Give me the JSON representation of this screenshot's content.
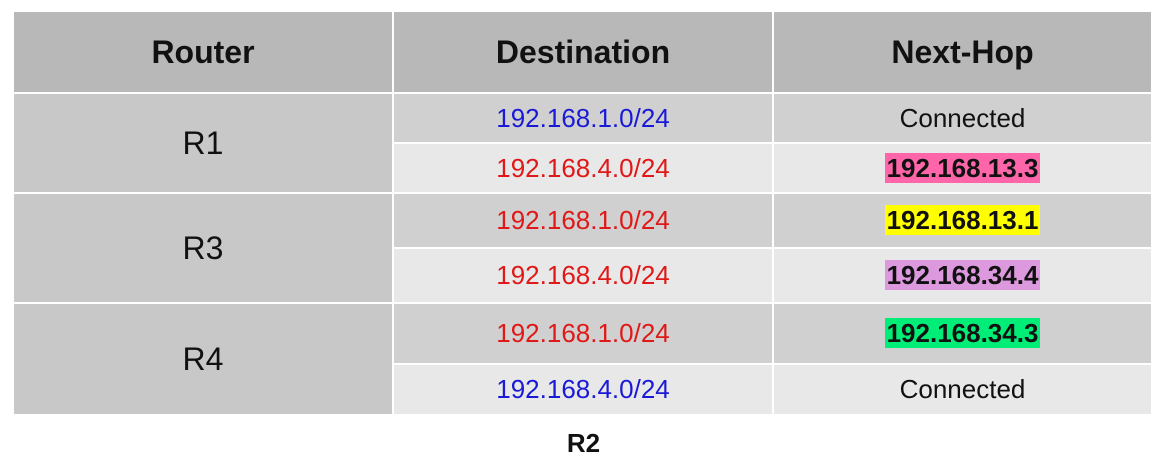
{
  "table": {
    "headers": {
      "router": "Router",
      "destination": "Destination",
      "next_hop": "Next-Hop"
    },
    "groups": [
      {
        "router": "R1",
        "routes": [
          {
            "destination": "192.168.1.0/24",
            "destination_color": "#1a1ad6",
            "next_hop": "Connected",
            "highlight": null
          },
          {
            "destination": "192.168.4.0/24",
            "destination_color": "#e01818",
            "next_hop": "192.168.13.3",
            "highlight": "#ff66aa"
          }
        ]
      },
      {
        "router": "R3",
        "routes": [
          {
            "destination": "192.168.1.0/24",
            "destination_color": "#e01818",
            "next_hop": "192.168.13.1",
            "highlight": "#ffff00"
          },
          {
            "destination": "192.168.4.0/24",
            "destination_color": "#e01818",
            "next_hop": "192.168.34.4",
            "highlight": "#dd99dd"
          }
        ]
      },
      {
        "router": "R4",
        "routes": [
          {
            "destination": "192.168.1.0/24",
            "destination_color": "#e01818",
            "next_hop": "192.168.34.3",
            "highlight": "#00ee77"
          },
          {
            "destination": "192.168.4.0/24",
            "destination_color": "#1a1ad6",
            "next_hop": "Connected",
            "highlight": null
          }
        ]
      }
    ]
  },
  "caption_partial": "R2"
}
